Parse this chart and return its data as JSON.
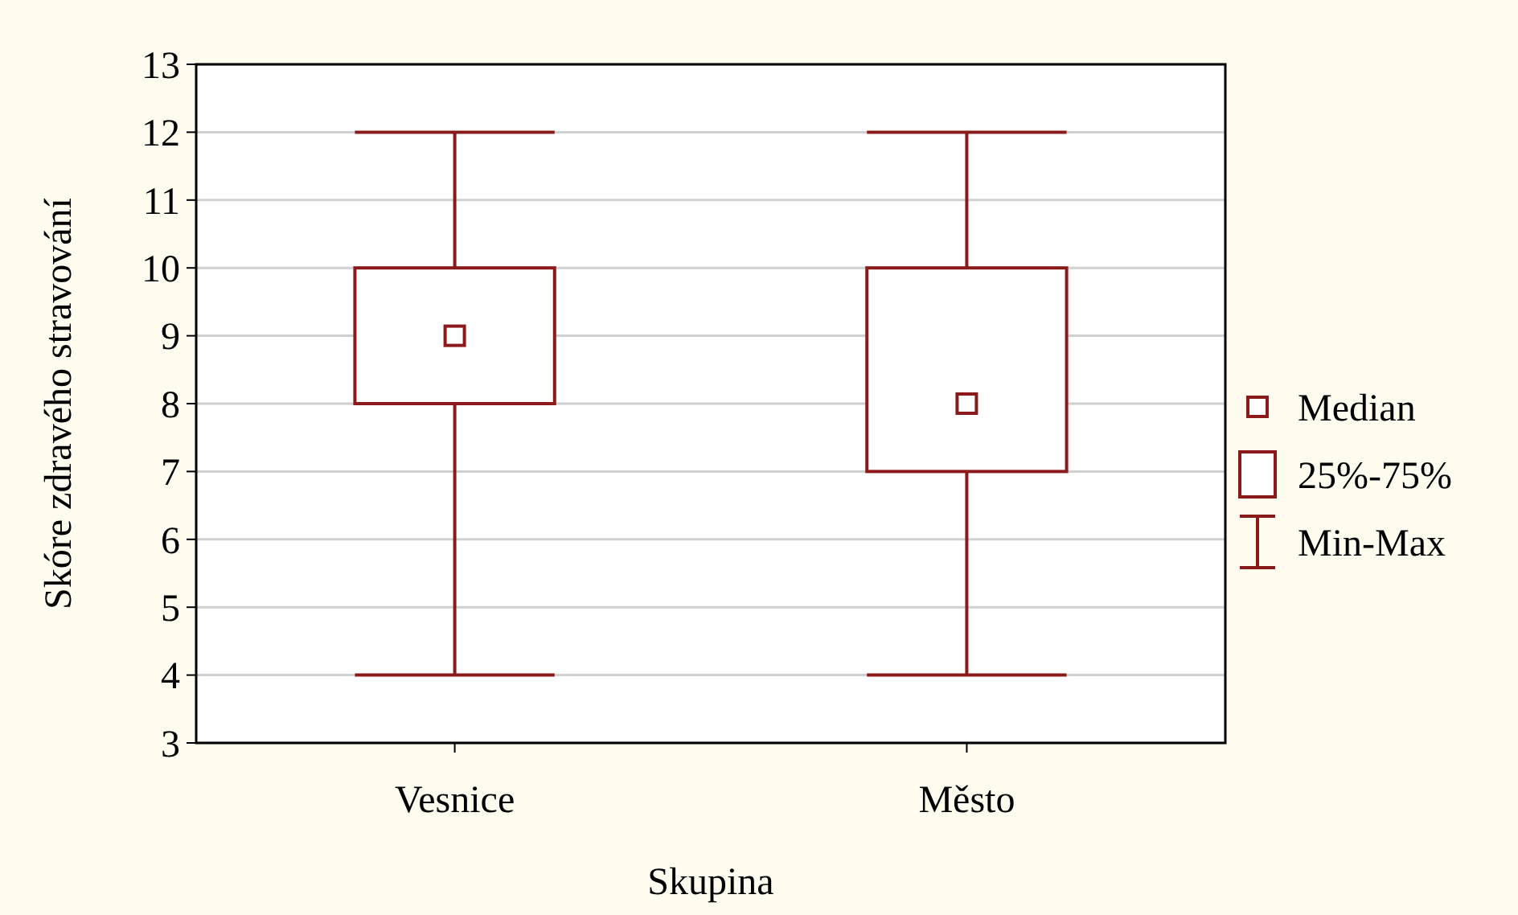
{
  "chart_data": {
    "type": "box",
    "xlabel": "Skupina",
    "ylabel": "Skóre zdravého stravování",
    "categories": [
      "Vesnice",
      "Město"
    ],
    "series": [
      {
        "color": "#8b1a1a",
        "boxes": [
          {
            "low": 4,
            "q1": 8,
            "median": 9,
            "q3": 10,
            "high": 12
          },
          {
            "low": 4,
            "q1": 7,
            "median": 8,
            "q3": 10,
            "high": 12
          }
        ]
      }
    ],
    "ylim": [
      3,
      13
    ],
    "yticks": [
      3,
      4,
      5,
      6,
      7,
      8,
      9,
      10,
      11,
      12,
      13
    ],
    "grid": "y",
    "marker": "square",
    "annotations": [
      "Median",
      "25%-75%",
      "Min-Max"
    ]
  }
}
